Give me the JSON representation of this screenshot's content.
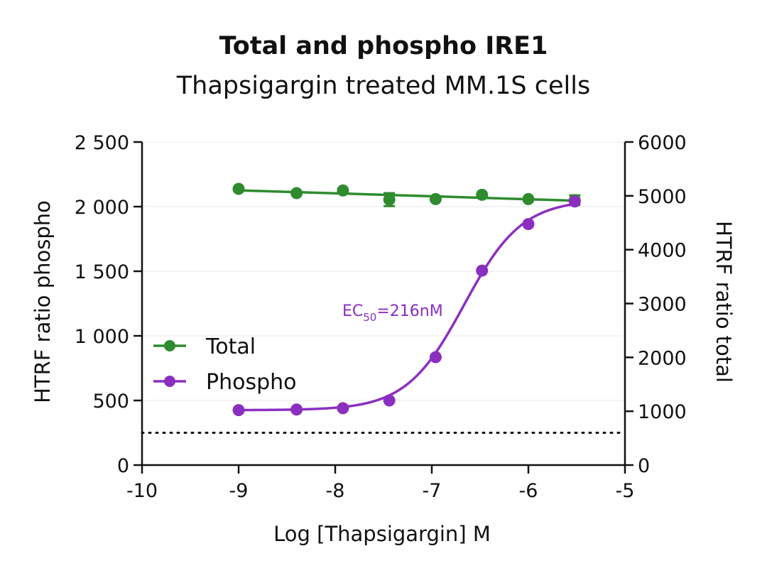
{
  "chart_data": {
    "type": "line",
    "title": "Total and phospho IRE1",
    "subtitle": "Thapsigargin treated MM.1S cells",
    "xlabel": "Log [Thapsigargin] M",
    "ylabel_left": "HTRF ratio phospho",
    "ylabel_right": "HTRF ratio total",
    "xlim": [
      -10,
      -5
    ],
    "ylim_left": [
      0,
      2500
    ],
    "ylim_right": [
      0,
      6000
    ],
    "x_ticks": [
      "-10",
      "-9",
      "-8",
      "-7",
      "-6",
      "-5"
    ],
    "y_left_ticks": [
      "0",
      "500",
      "1 000",
      "1 500",
      "2 000",
      "2 500"
    ],
    "y_right_ticks": [
      "0",
      "1000",
      "2000",
      "3000",
      "4000",
      "5000",
      "6000"
    ],
    "grid": "horizontal",
    "legend_position": "center-left",
    "series": [
      {
        "name": "Total",
        "axis": "right",
        "color": "#2e8b2e",
        "x": [
          -9.0,
          -8.4,
          -7.92,
          -7.44,
          -6.96,
          -6.48,
          -6.0,
          -5.52
        ],
        "y": [
          5130,
          5050,
          5100,
          4930,
          4940,
          5020,
          4940,
          4920
        ],
        "error": [
          0,
          0,
          0,
          120,
          0,
          0,
          0,
          90
        ],
        "fit": "linear"
      },
      {
        "name": "Phospho",
        "axis": "left",
        "color": "#8b2fc0",
        "x": [
          -9.0,
          -8.4,
          -7.92,
          -7.44,
          -6.96,
          -6.48,
          -6.0,
          -5.52
        ],
        "y": [
          425,
          430,
          440,
          500,
          835,
          1505,
          1865,
          2040
        ],
        "fit": "sigmoidal"
      }
    ],
    "reference_line": {
      "axis": "left",
      "y": 250,
      "style": "dotted"
    },
    "annotation": {
      "text_main": "EC",
      "text_sub": "50",
      "text_tail": "=216nM",
      "color": "#8b2fc0"
    }
  }
}
